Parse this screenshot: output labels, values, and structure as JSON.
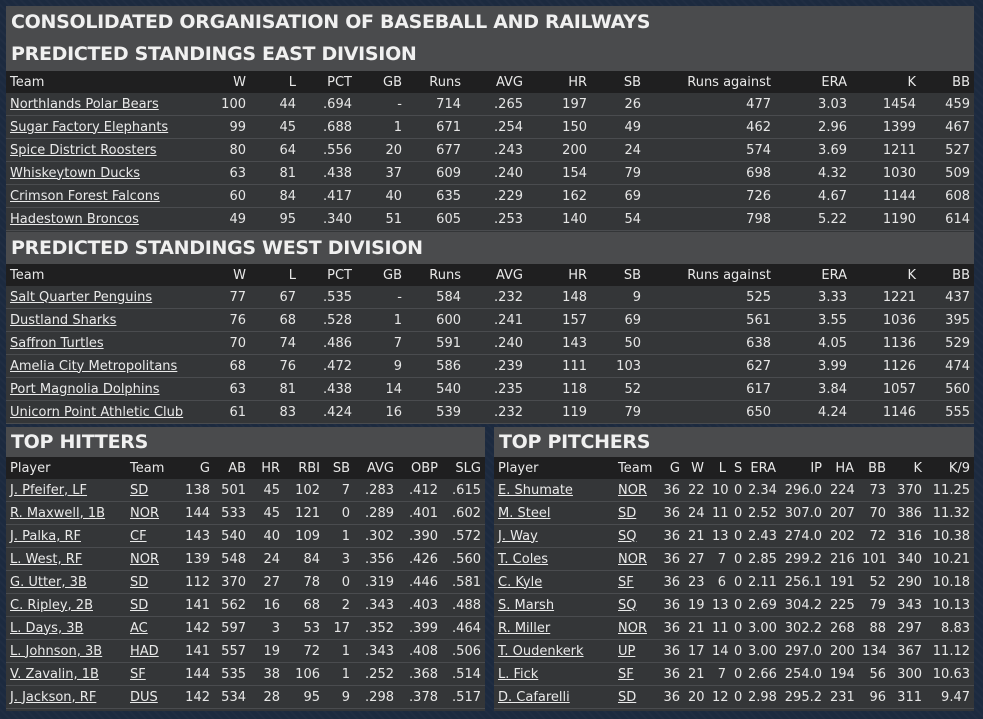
{
  "main_title": "CONSOLIDATED ORGANISATION OF BASEBALL AND RAILWAYS",
  "standings_columns": [
    "Team",
    "W",
    "L",
    "PCT",
    "GB",
    "Runs",
    "AVG",
    "HR",
    "SB",
    "Runs against",
    "ERA",
    "K",
    "BB"
  ],
  "east": {
    "title": "PREDICTED STANDINGS EAST DIVISION",
    "rows": [
      [
        "Northlands Polar Bears",
        "100",
        "44",
        ".694",
        "-",
        "714",
        ".265",
        "197",
        "26",
        "477",
        "3.03",
        "1454",
        "459"
      ],
      [
        "Sugar Factory Elephants",
        "99",
        "45",
        ".688",
        "1",
        "671",
        ".254",
        "150",
        "49",
        "462",
        "2.96",
        "1399",
        "467"
      ],
      [
        "Spice District Roosters",
        "80",
        "64",
        ".556",
        "20",
        "677",
        ".243",
        "200",
        "24",
        "574",
        "3.69",
        "1211",
        "527"
      ],
      [
        "Whiskeytown Ducks",
        "63",
        "81",
        ".438",
        "37",
        "609",
        ".240",
        "154",
        "79",
        "698",
        "4.32",
        "1030",
        "509"
      ],
      [
        "Crimson Forest Falcons",
        "60",
        "84",
        ".417",
        "40",
        "635",
        ".229",
        "162",
        "69",
        "726",
        "4.67",
        "1144",
        "608"
      ],
      [
        "Hadestown Broncos",
        "49",
        "95",
        ".340",
        "51",
        "605",
        ".253",
        "140",
        "54",
        "798",
        "5.22",
        "1190",
        "614"
      ]
    ]
  },
  "west": {
    "title": "PREDICTED STANDINGS WEST DIVISION",
    "rows": [
      [
        "Salt Quarter Penguins",
        "77",
        "67",
        ".535",
        "-",
        "584",
        ".232",
        "148",
        "9",
        "525",
        "3.33",
        "1221",
        "437"
      ],
      [
        "Dustland Sharks",
        "76",
        "68",
        ".528",
        "1",
        "600",
        ".241",
        "157",
        "69",
        "561",
        "3.55",
        "1036",
        "395"
      ],
      [
        "Saffron Turtles",
        "70",
        "74",
        ".486",
        "7",
        "591",
        ".240",
        "143",
        "50",
        "638",
        "4.05",
        "1136",
        "529"
      ],
      [
        "Amelia City Metropolitans",
        "68",
        "76",
        ".472",
        "9",
        "586",
        ".239",
        "111",
        "103",
        "627",
        "3.99",
        "1126",
        "474"
      ],
      [
        "Port Magnolia Dolphins",
        "63",
        "81",
        ".438",
        "14",
        "540",
        ".235",
        "118",
        "52",
        "617",
        "3.84",
        "1057",
        "560"
      ],
      [
        "Unicorn Point Athletic Club",
        "61",
        "83",
        ".424",
        "16",
        "539",
        ".232",
        "119",
        "79",
        "650",
        "4.24",
        "1146",
        "555"
      ]
    ]
  },
  "hitters": {
    "title": "TOP HITTERS",
    "columns": [
      "Player",
      "Team",
      "G",
      "AB",
      "HR",
      "RBI",
      "SB",
      "AVG",
      "OBP",
      "SLG"
    ],
    "rows": [
      [
        "J. Pfeifer, LF",
        "SD",
        "138",
        "501",
        "45",
        "102",
        "7",
        ".283",
        ".412",
        ".615"
      ],
      [
        "R. Maxwell, 1B",
        "NOR",
        "144",
        "533",
        "45",
        "121",
        "0",
        ".289",
        ".401",
        ".602"
      ],
      [
        "J. Palka, RF",
        "CF",
        "143",
        "540",
        "40",
        "109",
        "1",
        ".302",
        ".390",
        ".572"
      ],
      [
        "L. West, RF",
        "NOR",
        "139",
        "548",
        "24",
        "84",
        "3",
        ".356",
        ".426",
        ".560"
      ],
      [
        "G. Utter, 3B",
        "SD",
        "112",
        "370",
        "27",
        "78",
        "0",
        ".319",
        ".446",
        ".581"
      ],
      [
        "C. Ripley, 2B",
        "SD",
        "141",
        "562",
        "16",
        "68",
        "2",
        ".343",
        ".403",
        ".488"
      ],
      [
        "L. Days, 3B",
        "AC",
        "142",
        "597",
        "3",
        "53",
        "17",
        ".352",
        ".399",
        ".464"
      ],
      [
        "L. Johnson, 3B",
        "HAD",
        "141",
        "557",
        "19",
        "72",
        "1",
        ".343",
        ".408",
        ".506"
      ],
      [
        "V. Zavalin, 1B",
        "SF",
        "144",
        "535",
        "38",
        "106",
        "1",
        ".252",
        ".368",
        ".514"
      ],
      [
        "J. Jackson, RF",
        "DUS",
        "142",
        "534",
        "28",
        "95",
        "9",
        ".298",
        ".378",
        ".517"
      ]
    ]
  },
  "pitchers": {
    "title": "TOP PITCHERS",
    "columns": [
      "Player",
      "Team",
      "G",
      "W",
      "L",
      "S",
      "ERA",
      "IP",
      "HA",
      "BB",
      "K",
      "K/9"
    ],
    "rows": [
      [
        "E. Shumate",
        "NOR",
        "36",
        "22",
        "10",
        "0",
        "2.34",
        "296.0",
        "224",
        "73",
        "370",
        "11.25"
      ],
      [
        "M. Steel",
        "SD",
        "36",
        "24",
        "11",
        "0",
        "2.52",
        "307.0",
        "207",
        "70",
        "386",
        "11.32"
      ],
      [
        "J. Way",
        "SQ",
        "36",
        "21",
        "13",
        "0",
        "2.43",
        "274.0",
        "202",
        "72",
        "316",
        "10.38"
      ],
      [
        "T. Coles",
        "NOR",
        "36",
        "27",
        "7",
        "0",
        "2.85",
        "299.2",
        "216",
        "101",
        "340",
        "10.21"
      ],
      [
        "C. Kyle",
        "SF",
        "36",
        "23",
        "6",
        "0",
        "2.11",
        "256.1",
        "191",
        "52",
        "290",
        "10.18"
      ],
      [
        "S. Marsh",
        "SQ",
        "36",
        "19",
        "13",
        "0",
        "2.69",
        "304.2",
        "225",
        "79",
        "343",
        "10.13"
      ],
      [
        "R. Miller",
        "NOR",
        "36",
        "21",
        "11",
        "0",
        "3.00",
        "302.2",
        "268",
        "88",
        "297",
        "8.83"
      ],
      [
        "T. Oudenkerk",
        "UP",
        "36",
        "17",
        "14",
        "0",
        "3.00",
        "297.0",
        "200",
        "134",
        "367",
        "11.12"
      ],
      [
        "L. Fick",
        "SF",
        "36",
        "21",
        "7",
        "0",
        "2.66",
        "254.0",
        "194",
        "56",
        "300",
        "10.63"
      ],
      [
        "D. Cafarelli",
        "SD",
        "36",
        "20",
        "12",
        "0",
        "2.98",
        "295.2",
        "231",
        "96",
        "311",
        "9.47"
      ]
    ]
  }
}
